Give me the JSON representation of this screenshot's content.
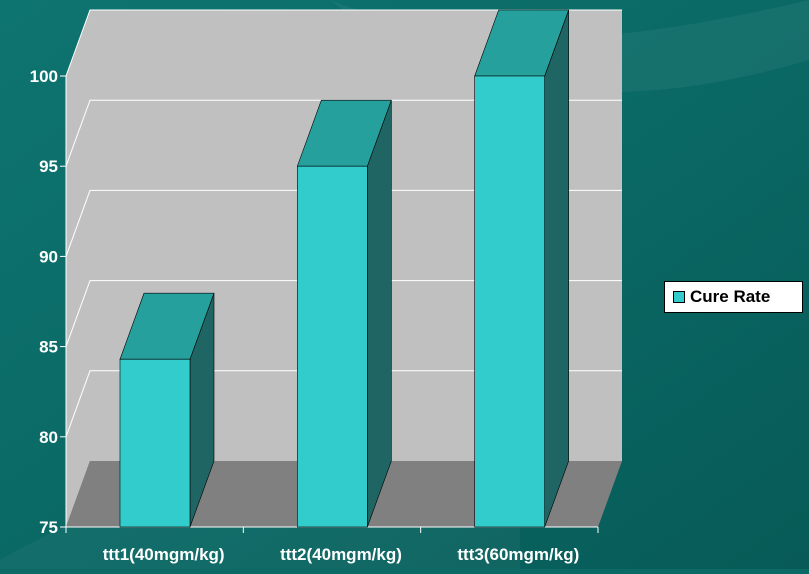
{
  "chart_data": {
    "type": "bar",
    "categories": [
      "ttt1(40mgm/kg)",
      "ttt2(40mgm/kg)",
      "ttt3(60mgm/kg)"
    ],
    "series": [
      {
        "name": "Cure Rate",
        "values": [
          84.3,
          95,
          100
        ]
      }
    ],
    "title": "",
    "xlabel": "",
    "ylabel": "",
    "ylim": [
      75,
      100
    ],
    "yticks": [
      75,
      80,
      85,
      90,
      95,
      100
    ],
    "grid": true,
    "legend_position": "right",
    "style": "3d-column"
  },
  "colors": {
    "background": "#0b6a66",
    "wall": "#c0c0c0",
    "floor": "#808080",
    "bar_front": "#33cccc",
    "bar_top": "#26a09c",
    "bar_side": "#1e6563",
    "gridline": "#ffffff",
    "axis_text": "#ffffff"
  }
}
